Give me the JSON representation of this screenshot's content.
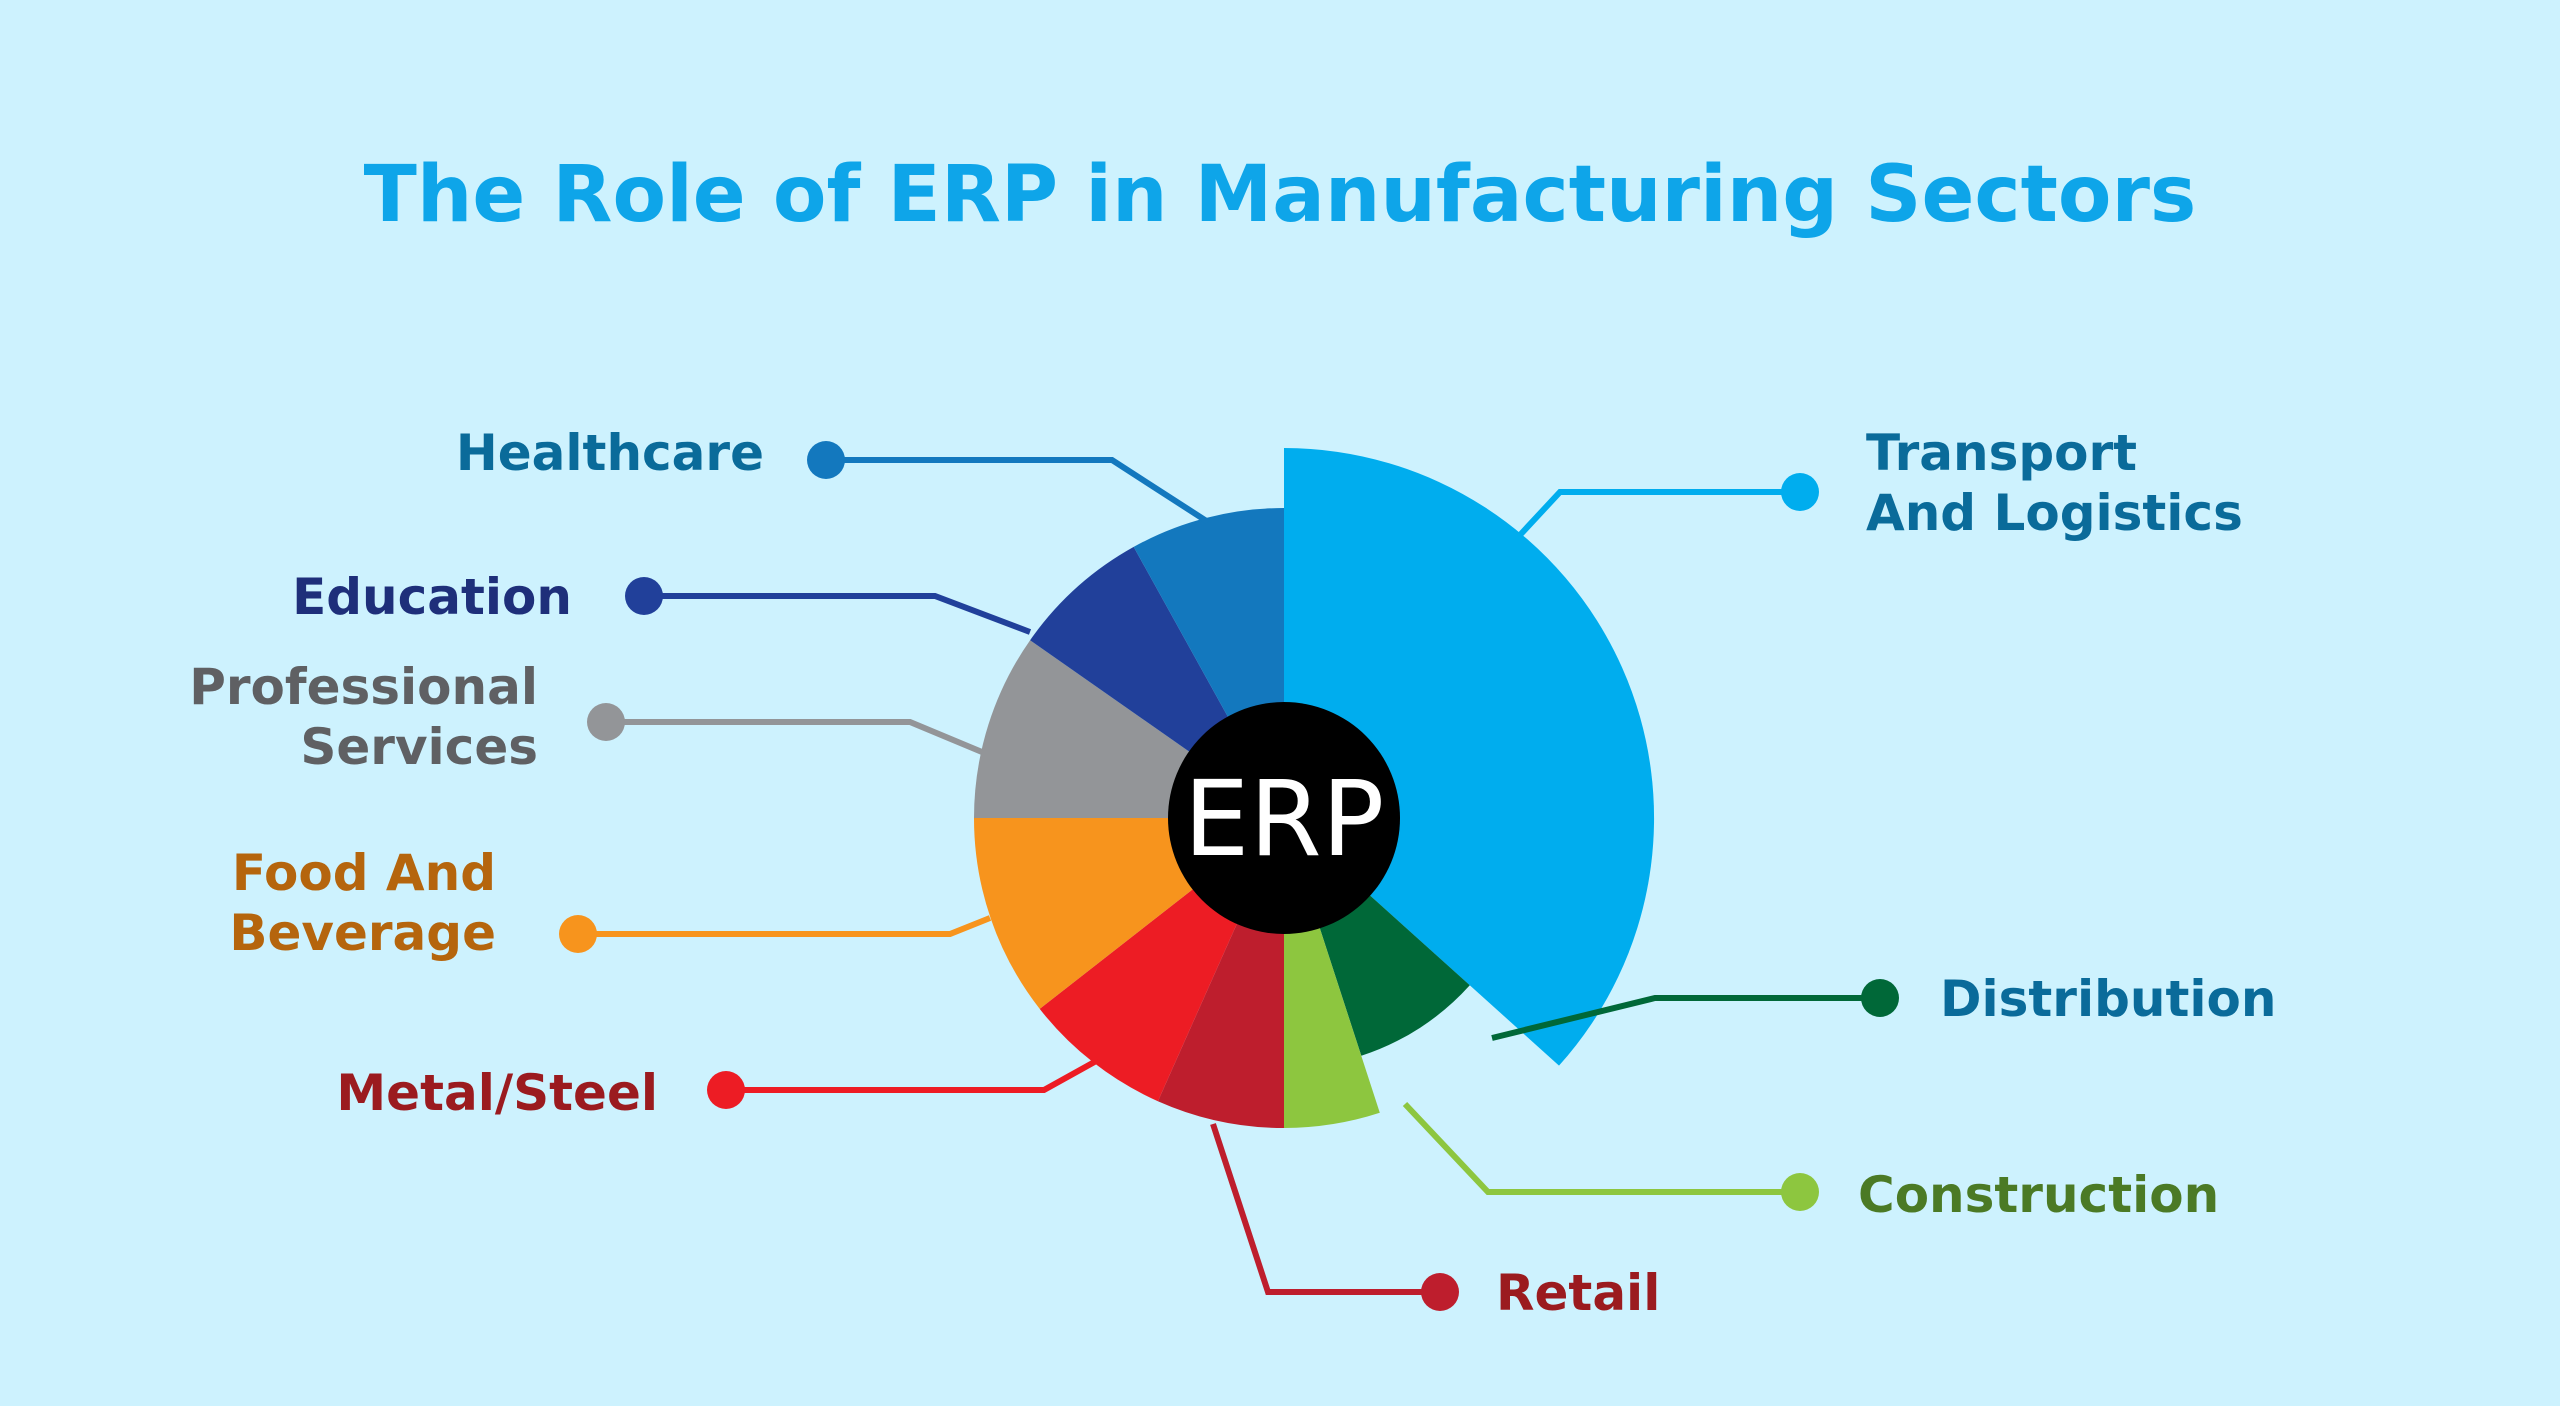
{
  "title": "The Role of ERP in Manufacturing Sectors",
  "center_label": "ERP",
  "colors": {
    "background": "#cdf2fe",
    "title": "#0ea5e9",
    "center": "#000000",
    "center_text": "#ffffff"
  },
  "sectors": [
    {
      "key": "transport",
      "lines": [
        "Transport",
        "And Logistics"
      ],
      "color": "#00adee",
      "label_color": "#0a6b9a",
      "share": "largest"
    },
    {
      "key": "distribution",
      "lines": [
        "Distribution"
      ],
      "color": "#006838",
      "label_color": "#0a6b9a"
    },
    {
      "key": "construction",
      "lines": [
        "Construction"
      ],
      "color": "#8dc63f",
      "label_color": "#4b7a25"
    },
    {
      "key": "retail",
      "lines": [
        "Retail"
      ],
      "color": "#be1e2d",
      "label_color": "#9b1b1f"
    },
    {
      "key": "metal",
      "lines": [
        "Metal/Steel"
      ],
      "color": "#ed1c24",
      "label_color": "#9b1b1f"
    },
    {
      "key": "food",
      "lines": [
        "Food And",
        "Beverage"
      ],
      "color": "#f7941d",
      "label_color": "#b5650d"
    },
    {
      "key": "professional",
      "lines": [
        "Professional",
        "Services"
      ],
      "color": "#939598",
      "label_color": "#5f6063"
    },
    {
      "key": "education",
      "lines": [
        "Education"
      ],
      "color": "#21409a",
      "label_color": "#1e2f7a"
    },
    {
      "key": "healthcare",
      "lines": [
        "Healthcare"
      ],
      "color": "#1378be",
      "label_color": "#0a6b9a"
    }
  ]
}
